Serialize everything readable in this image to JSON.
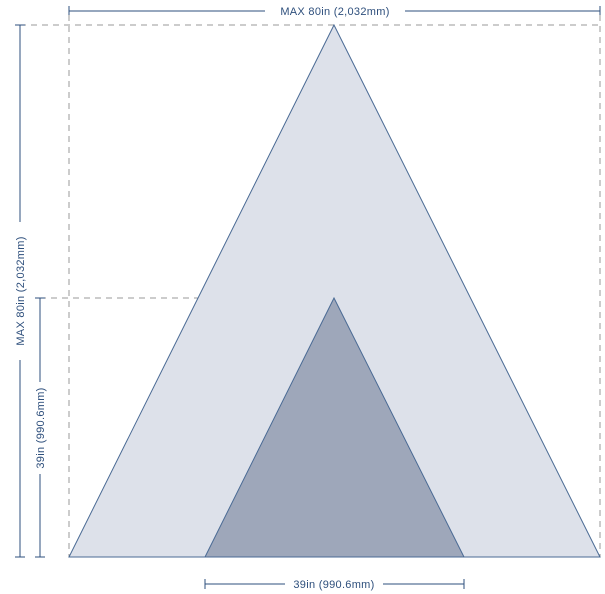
{
  "dimensions": {
    "max_width_label": "MAX 80in (2,032mm)",
    "max_height_label": "MAX 80in (2,032mm)",
    "small_width_label": "39in (990.6mm)",
    "small_height_label": "39in (990.6mm)"
  },
  "colors": {
    "large_triangle_fill": "#dde1ea",
    "small_triangle_fill": "#9ea7ba",
    "outline": "#4a6a94",
    "dimension_line": "#2e4f7c",
    "dimension_text": "#2e4f7c",
    "guide_dash": "#9a9a9a"
  }
}
